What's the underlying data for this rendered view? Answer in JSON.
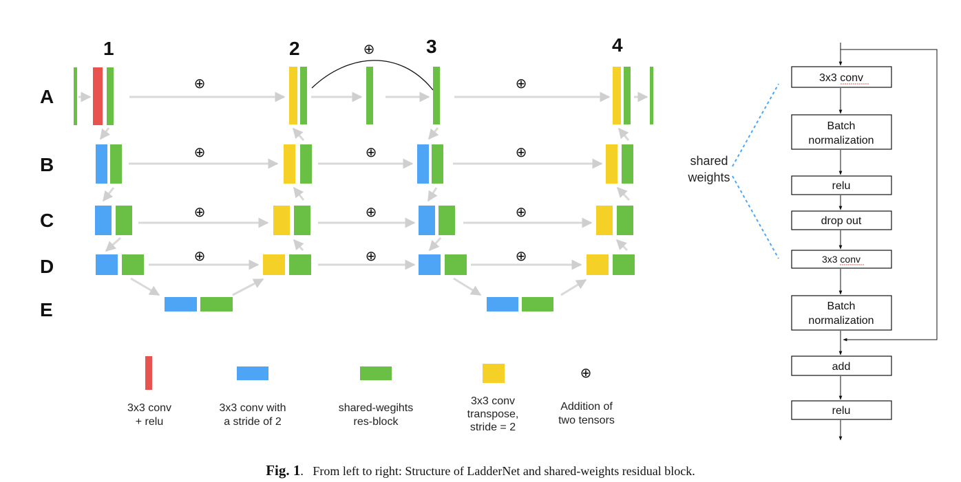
{
  "diagram": {
    "column_labels": [
      "1",
      "2",
      "3",
      "4"
    ],
    "row_labels": [
      "A",
      "B",
      "C",
      "D",
      "E"
    ],
    "plus_symbol": "⊕",
    "colors": {
      "conv_relu": "#e8534f",
      "strided_conv": "#4ea5f5",
      "shared_res_block": "#6abf45",
      "transpose_conv": "#f5d027",
      "arrow": "#d9d9d9"
    },
    "legend": [
      {
        "icon": "red-bar",
        "lines": [
          "3x3 conv",
          "+ relu"
        ]
      },
      {
        "icon": "blue-block",
        "lines": [
          "3x3 conv with",
          "a stride of 2"
        ]
      },
      {
        "icon": "green-block",
        "lines": [
          "shared-wegihts",
          "res-block"
        ]
      },
      {
        "icon": "yellow-block",
        "lines": [
          "3x3 conv",
          "transpose,",
          "stride = 2"
        ]
      },
      {
        "icon": "plus-circle",
        "lines": [
          "Addition of",
          "two tensors"
        ]
      }
    ]
  },
  "res_block": {
    "shared_label_lines": [
      "shared",
      "weights"
    ],
    "boxes": [
      {
        "lines": [
          "3x3 conv"
        ]
      },
      {
        "lines": [
          "Batch",
          "normalization"
        ]
      },
      {
        "lines": [
          "relu"
        ]
      },
      {
        "lines": [
          "drop out"
        ]
      },
      {
        "lines": [
          "3x3 conv"
        ]
      },
      {
        "lines": [
          "Batch",
          "normalization"
        ]
      },
      {
        "lines": [
          "add"
        ]
      },
      {
        "lines": [
          "relu"
        ]
      }
    ]
  },
  "caption": {
    "label": "Fig. 1",
    "text": "From left to right: Structure of LadderNet and shared-weights residual block."
  }
}
